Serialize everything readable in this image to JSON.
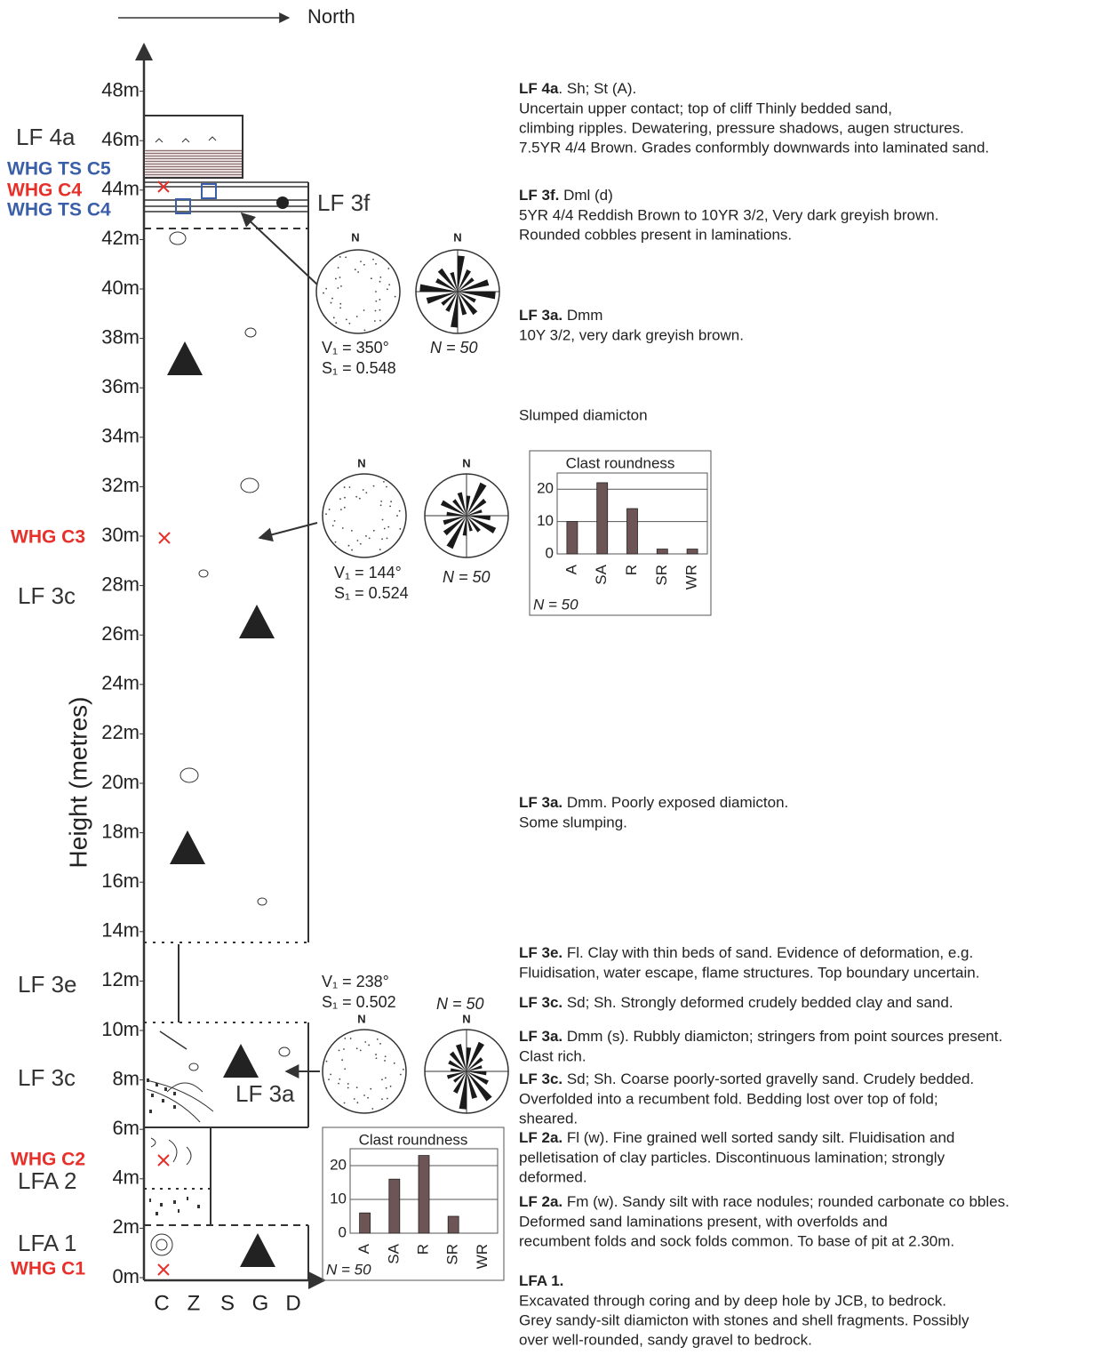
{
  "north_label": "North",
  "y_axis_label": "Height (metres)",
  "height_ticks": [
    "0m",
    "2m",
    "4m",
    "6m",
    "8m",
    "10m",
    "12m",
    "14m",
    "16m",
    "18m",
    "20m",
    "22m",
    "24m",
    "26m",
    "28m",
    "30m",
    "32m",
    "34m",
    "36m",
    "38m",
    "40m",
    "42m",
    "44m",
    "46m",
    "48m"
  ],
  "grain_size_labels": [
    "C",
    "Z",
    "S",
    "G",
    "D"
  ],
  "unit_labels": [
    {
      "text": "LF 4a",
      "color": "#333333"
    },
    {
      "text": "WHG TS C5",
      "color": "#3a5fa8"
    },
    {
      "text": "WHG C4",
      "color": "#e8302a"
    },
    {
      "text": "WHG TS C4",
      "color": "#3a5fa8"
    },
    {
      "text": "LF 3f",
      "color": "#333333"
    },
    {
      "text": "WHG C3",
      "color": "#e8302a"
    },
    {
      "text": "LF 3c",
      "color": "#333333"
    },
    {
      "text": "LF 3e",
      "color": "#333333"
    },
    {
      "text": "LF 3c",
      "color": "#333333"
    },
    {
      "text": "LF 3a",
      "color": "#333333"
    },
    {
      "text": "WHG C2",
      "color": "#e8302a"
    },
    {
      "text": "LFA 2",
      "color": "#333333"
    },
    {
      "text": "LFA 1",
      "color": "#333333"
    },
    {
      "text": "WHG C1",
      "color": "#e8302a"
    }
  ],
  "fabrics": [
    {
      "stereo_n": "N",
      "rose_n": "N",
      "v1": "V₁ = 350°",
      "s1": "S₁ = 0.548",
      "n": "N = 50"
    },
    {
      "stereo_n": "N",
      "rose_n": "N",
      "v1": "V₁ = 144°",
      "s1": "S₁ = 0.524",
      "n": "N = 50"
    },
    {
      "stereo_n": "N",
      "rose_n": "N",
      "v1": "V₁ = 238°",
      "s1": "S₁ = 0.502",
      "n": "N = 50"
    }
  ],
  "roundness_charts": [
    {
      "type": "bar",
      "title": "Clast roundness",
      "categories": [
        "A",
        "SA",
        "R",
        "SR",
        "WR"
      ],
      "values": [
        10,
        22,
        14,
        1.5,
        1.5
      ],
      "color": "#6e5555",
      "ylim": [
        0,
        25
      ],
      "yticks": [
        0,
        10,
        20
      ],
      "grid": true,
      "n_label": "N = 50"
    },
    {
      "type": "bar",
      "title": "Clast roundness",
      "categories": [
        "A",
        "SA",
        "R",
        "SR",
        "WR"
      ],
      "values": [
        6,
        16,
        23,
        5,
        0
      ],
      "color": "#6e5555",
      "ylim": [
        0,
        25
      ],
      "yticks": [
        0,
        10,
        20
      ],
      "grid": true,
      "n_label": "N = 50"
    }
  ],
  "descriptions": [
    {
      "head": "LF 4a",
      "rest": ". Sh; St (A).",
      "lines": [
        "Uncertain upper contact; top of cliff  Thinly bedded sand,",
        "climbing ripples.  Dewatering, pressure shadows, augen structures.",
        "7.5YR 4/4 Brown. Grades conformbly downwards into laminated sand."
      ]
    },
    {
      "head": "LF 3f.",
      "rest": " Dml (d)",
      "lines": [
        "5YR 4/4 Reddish Brown to 10YR 3/2, Very dark greyish brown.",
        "Rounded cobbles present in laminations."
      ]
    },
    {
      "head": "LF 3a.",
      "rest": " Dmm",
      "lines": [
        "10Y 3/2, very dark greyish brown."
      ]
    },
    {
      "lines": [
        "Slumped diamicton"
      ]
    },
    {
      "head": "LF 3a.",
      "rest": "  Dmm. Poorly exposed diamicton.",
      "lines": [
        "Some slumping."
      ]
    },
    {
      "head": "LF 3e.",
      "rest": " Fl. Clay with thin beds of sand.  Evidence of deformation, e.g.",
      "lines": [
        "Fluidisation, water escape, flame structures.  Top boundary uncertain."
      ]
    },
    {
      "head": "LF 3c.",
      "rest": "  Sd; Sh. Strongly deformed crudely bedded clay and sand.",
      "lines": []
    },
    {
      "head": "LF 3a.",
      "rest": " Dmm (s).  Rubbly diamicton; stringers from point sources present.",
      "lines": [
        "Clast rich."
      ]
    },
    {
      "head": "LF 3c.",
      "rest": " Sd; Sh.  Coarse poorly-sorted gravelly sand.  Crudely bedded.",
      "lines": [
        "Overfolded into a recumbent fold.  Bedding lost over top of fold;",
        "sheared."
      ]
    },
    {
      "head": "LF 2a.",
      "rest": " Fl (w).  Fine grained well sorted sandy silt.  Fluidisation and",
      "lines": [
        "pelletisation of clay particles.  Discontinuous lamination; strongly",
        "deformed."
      ]
    },
    {
      "head": "LF 2a.",
      "rest": " Fm (w).  Sandy silt with race nodules; rounded carbonate co bbles.",
      "lines": [
        "Deformed sand laminations present, with overfolds and",
        "recumbent folds and sock folds common.  To base of pit at 2.30m."
      ]
    },
    {
      "head": "LFA 1.",
      "lines": [
        "Excavated through coring and by deep hole by JCB, to bedrock.",
        "Grey sandy-silt diamicton with stones and shell fragments.  Possibly",
        "over well-rounded, sandy gravel to bedrock."
      ]
    }
  ]
}
